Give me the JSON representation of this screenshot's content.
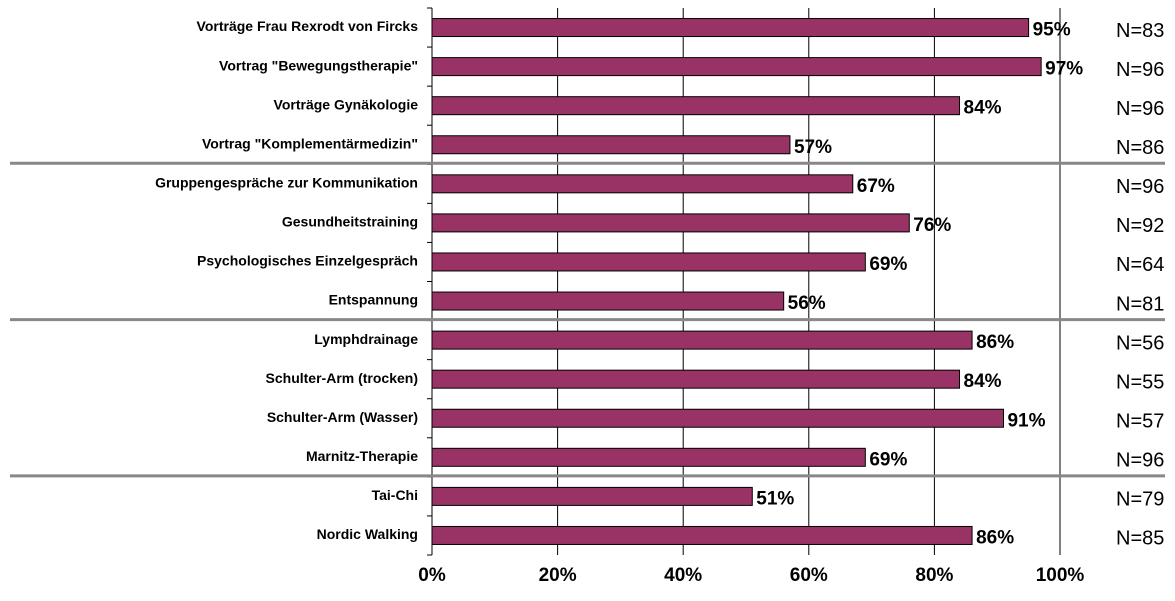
{
  "chart_data": {
    "type": "barh",
    "categories": [
      "Vorträge Frau Rexrodt von Fircks",
      "Vortrag \"Bewegungstherapie\"",
      "Vorträge Gynäkologie",
      "Vortrag \"Komplementärmedizin\"",
      "Gruppengespräche zur Kommunikation",
      "Gesundheitstraining",
      "Psychologisches Einzelgespräch",
      "Entspannung",
      "Lymphdrainage",
      "Schulter-Arm (trocken)",
      "Schulter-Arm (Wasser)",
      "Marnitz-Therapie",
      "Tai-Chi",
      "Nordic Walking"
    ],
    "values": [
      95,
      97,
      84,
      57,
      67,
      76,
      69,
      56,
      86,
      84,
      91,
      69,
      51,
      86
    ],
    "value_labels": [
      "95%",
      "97%",
      "84%",
      "57%",
      "67%",
      "76%",
      "69%",
      "56%",
      "86%",
      "84%",
      "91%",
      "69%",
      "51%",
      "86%"
    ],
    "annotations": [
      "N=83",
      "N=96",
      "N=96",
      "N=86",
      "N=96",
      "N=92",
      "N=64",
      "N=81",
      "N=56",
      "N=55",
      "N=57",
      "N=96",
      "N=79",
      "N=85"
    ],
    "color": "#993366",
    "xlim": [
      0,
      100
    ],
    "xticks": [
      {
        "value": 0,
        "label": "0%"
      },
      {
        "value": 20,
        "label": "20%"
      },
      {
        "value": 40,
        "label": "40%"
      },
      {
        "value": 60,
        "label": "60%"
      },
      {
        "value": 80,
        "label": "80%"
      },
      {
        "value": 100,
        "label": "100%"
      }
    ],
    "grid": true
  }
}
